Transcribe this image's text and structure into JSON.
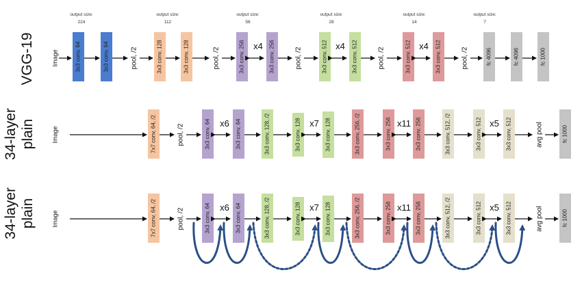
{
  "colors": {
    "blue": "#4a7ccf",
    "orange": "#f6c5a0",
    "purple": "#b5a3cf",
    "green": "#c5df9e",
    "red": "#de9a9a",
    "beige": "#e4e0cc",
    "gray": "#c4c4c4",
    "skip": "#2b4f87"
  },
  "vgg": {
    "label": "VGG-19",
    "sizes": [
      {
        "title": "output size:",
        "value": "224"
      },
      {
        "title": "output size:",
        "value": "112"
      },
      {
        "title": "output size:",
        "value": "56"
      },
      {
        "title": "output size:",
        "value": "28"
      },
      {
        "title": "output size:",
        "value": "14"
      },
      {
        "title": "output size:",
        "value": "7"
      }
    ],
    "image": "Image",
    "pool": "pool, /2",
    "blocks": [
      "3x3 conv, 64",
      "3x3 conv, 64",
      "3x3 conv, 128",
      "3x3 conv, 128",
      "3x3 conv, 256",
      "3x3 conv, 256",
      "3x3 conv, 512",
      "3x3 conv, 512",
      "3x3 conv, 512",
      "3x3 conv, 512",
      "fc 4096",
      "fc 4096",
      "fc 1000"
    ],
    "repeats": [
      "x4",
      "x4",
      "x4"
    ]
  },
  "plain": {
    "label_line1": "34-layer",
    "label_line2": "plain",
    "image": "Image",
    "pool": "pool, /2",
    "avgpool": "avg pool",
    "blocks": [
      "7x7 conv, 64, /2",
      "3x3 conv, 64",
      "3x3 conv, 64",
      "3x3 conv, 128, /2",
      "3x3 conv, 128",
      "3x3 conv, 128",
      "3x3 conv, 256, /2",
      "3x3 conv, 256",
      "3x3 conv, 256",
      "3x3 conv, 512, /2",
      "3x3 conv, 512",
      "3x3 conv, 512",
      "fc 1000"
    ],
    "repeats": [
      "x6",
      "x7",
      "x11",
      "x5"
    ]
  },
  "residual": {
    "label_line1": "34-layer",
    "label_line2": "plain",
    "image": "Image",
    "pool": "pool, /2",
    "avgpool": "avg pool",
    "blocks": [
      "7x7 conv, 64, /2",
      "3x3 conv, 64",
      "3x3 conv, 64",
      "3x3 conv, 128, /2",
      "3x3 conv, 128",
      "3x3 conv, 128",
      "3x3 conv, 256, /2",
      "3x3 conv, 256",
      "3x3 conv, 256",
      "3x3 conv, 512, /2",
      "3x3 conv, 512",
      "3x3 conv, 512",
      "fc 1000"
    ],
    "repeats": [
      "x6",
      "x7",
      "x11",
      "x5"
    ]
  }
}
